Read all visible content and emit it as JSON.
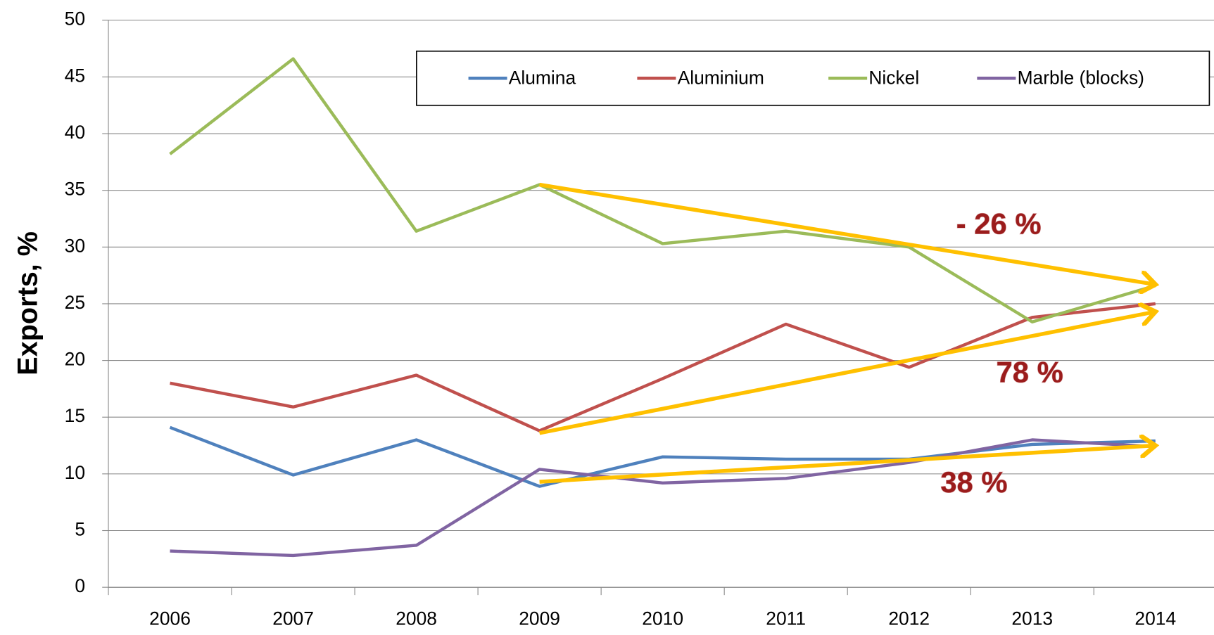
{
  "chart_data": {
    "type": "line",
    "y_label": "Exports, %",
    "categories": [
      "2006",
      "2007",
      "2008",
      "2009",
      "2010",
      "2011",
      "2012",
      "2013",
      "2014"
    ],
    "series": [
      {
        "name": "Alumina",
        "color": "#4f81bd",
        "values": [
          14.1,
          9.9,
          13.0,
          8.9,
          11.5,
          11.3,
          11.3,
          12.6,
          12.9
        ]
      },
      {
        "name": "Aluminium",
        "color": "#c0504d",
        "values": [
          18.0,
          15.9,
          18.7,
          13.8,
          18.4,
          23.2,
          19.4,
          23.8,
          25.0
        ]
      },
      {
        "name": "Nickel",
        "color": "#9bbb59",
        "values": [
          38.2,
          46.6,
          31.4,
          35.5,
          30.3,
          31.4,
          30.0,
          23.4,
          26.6
        ]
      },
      {
        "name": "Marble (blocks)",
        "color": "#8064a2",
        "values": [
          3.2,
          2.8,
          3.7,
          10.4,
          9.2,
          9.6,
          11.0,
          13.0,
          12.4
        ]
      }
    ],
    "trend_arrows": [
      {
        "label": "- 26 %",
        "color": "#ffc000",
        "x": [
          "2009",
          "2014"
        ],
        "values": [
          35.5,
          26.7
        ]
      },
      {
        "label": "78 %",
        "color": "#ffc000",
        "x": [
          "2009",
          "2014"
        ],
        "values": [
          13.6,
          24.3
        ]
      },
      {
        "label": "38 %",
        "color": "#ffc000",
        "x": [
          "2009",
          "2014"
        ],
        "values": [
          9.3,
          12.5
        ]
      }
    ],
    "ylim": [
      0,
      50
    ],
    "yticks": [
      0,
      5,
      10,
      15,
      20,
      25,
      30,
      35,
      40,
      45,
      50
    ],
    "grid": true
  }
}
